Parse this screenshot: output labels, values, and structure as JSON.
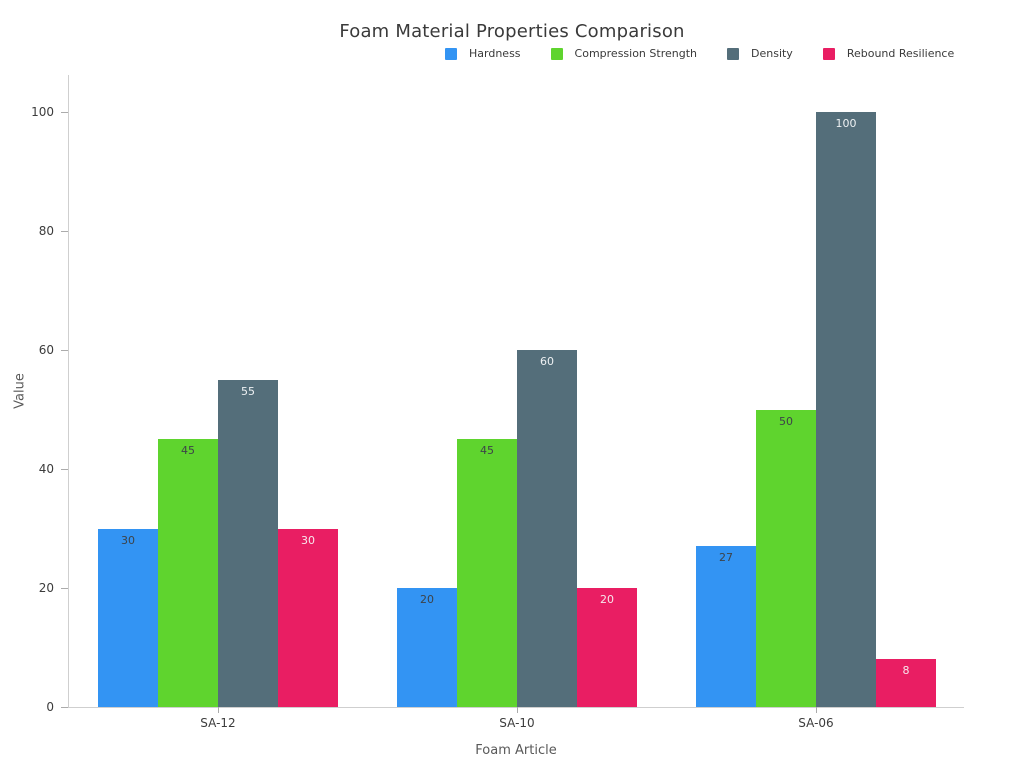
{
  "title": "Foam Material Properties Comparison",
  "chart_data": {
    "type": "bar",
    "title": "Foam Material Properties Comparison",
    "xlabel": "Foam Article",
    "ylabel": "Value",
    "categories": [
      "SA-12",
      "SA-10",
      "SA-06"
    ],
    "series": [
      {
        "name": "Hardness",
        "color": "#3394F3",
        "label_color": "#3d4349",
        "values": [
          30,
          20,
          27
        ]
      },
      {
        "name": "Compression Strength",
        "color": "#5FD42E",
        "label_color": "#3d4349",
        "values": [
          45,
          45,
          50
        ]
      },
      {
        "name": "Density",
        "color": "#546E7A",
        "label_color": "#eef1f3",
        "values": [
          55,
          60,
          100
        ]
      },
      {
        "name": "Rebound Resilience",
        "color": "#E91E63",
        "label_color": "#f7e6ec",
        "values": [
          30,
          20,
          8
        ]
      }
    ],
    "yticks": [
      0,
      20,
      40,
      60,
      80,
      100
    ],
    "ylim": [
      0,
      100
    ],
    "grid": false,
    "legend_position": "top-center-below-title",
    "bar_labels": "inside-top"
  }
}
